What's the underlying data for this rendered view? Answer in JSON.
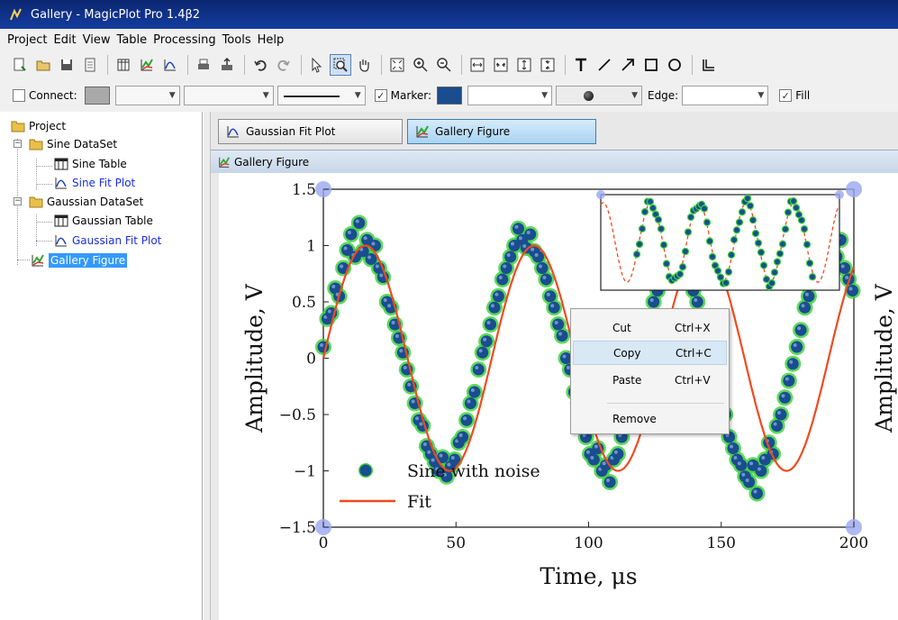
{
  "window": {
    "title": "Gallery - MagicPlot Pro 1.4β2"
  },
  "menu": [
    "Project",
    "Edit",
    "View",
    "Table",
    "Processing",
    "Tools",
    "Help"
  ],
  "format_bar": {
    "connect_label": "Connect:",
    "marker_label": "Marker:",
    "edge_label": "Edge:",
    "fill_label": "Fill",
    "marker_checked": true,
    "fill_checked": true,
    "connect_checked": false,
    "marker_color": "#1a4d8f"
  },
  "tree": {
    "root": "Project",
    "items": [
      {
        "label": "Sine DataSet"
      },
      {
        "label": "Sine Table"
      },
      {
        "label": "Sine Fit Plot"
      },
      {
        "label": "Gaussian DataSet"
      },
      {
        "label": "Gaussian Table"
      },
      {
        "label": "Gaussian Fit Plot"
      },
      {
        "label": "Gallery Figure"
      }
    ]
  },
  "tabs": [
    {
      "label": "Gaussian Fit Plot"
    },
    {
      "label": "Gallery Figure"
    }
  ],
  "document": {
    "title": "Gallery Figure"
  },
  "context_menu": {
    "items": [
      {
        "label": "Cut",
        "shortcut": "Ctrl+X"
      },
      {
        "label": "Copy",
        "shortcut": "Ctrl+C"
      },
      {
        "label": "Paste",
        "shortcut": "Ctrl+V"
      },
      {
        "label": "Remove",
        "shortcut": ""
      }
    ]
  },
  "chart_data": {
    "type": "scatter",
    "title": "",
    "xlabel": "Time, μs",
    "ylabel": "Amplitude, V",
    "right_ylabel": "Amplitude, V",
    "xlim": [
      0,
      200
    ],
    "ylim": [
      -1.5,
      1.5
    ],
    "x_ticks": [
      "0",
      "50",
      "100",
      "150",
      "200"
    ],
    "y_ticks": [
      "1.5",
      "1",
      "0.5",
      "0",
      "−0.5",
      "−1",
      "−1.5"
    ],
    "y_tick_values": [
      1.5,
      1,
      0.5,
      0,
      -0.5,
      -1,
      -1.5
    ],
    "x_tick_values": [
      0,
      50,
      100,
      150,
      200
    ],
    "legend_position": "bottom-left",
    "series": [
      {
        "name": "Sine with noise",
        "kind": "marker",
        "color": "#1a4d8f",
        "glow": "#3fd43f",
        "x": [
          0,
          1.5,
          3,
          4.5,
          6,
          7.5,
          9,
          10.5,
          12,
          13.5,
          15,
          16.5,
          18,
          19.5,
          21,
          22.5,
          24,
          25.5,
          27,
          28.5,
          30,
          31.5,
          33,
          34.5,
          36,
          37.5,
          39,
          40.5,
          42,
          43.5,
          45,
          46.5,
          48,
          49.5,
          51,
          52.5,
          54,
          55.5,
          57,
          58.5,
          60,
          61.5,
          63,
          64.5,
          66,
          67.5,
          69,
          70.5,
          72,
          73.5,
          75,
          76.5,
          78,
          79.5,
          81,
          82.5,
          84,
          85.5,
          87,
          88.5,
          90,
          91.5,
          93,
          94.5,
          96,
          97.5,
          99,
          100.5,
          102,
          103.5,
          105,
          106.5,
          108,
          109.5,
          111,
          112.5,
          114,
          115.5,
          117,
          118.5,
          120,
          121.5,
          123,
          124.5,
          126,
          127.5,
          129,
          130.5,
          132,
          133.5,
          135,
          136.5,
          138,
          139.5,
          141,
          142.5,
          144,
          145.5,
          147,
          148.5,
          150,
          151.5,
          153,
          154.5,
          156,
          157.5,
          159,
          160.5,
          162,
          163.5,
          165,
          166.5,
          168,
          169.5,
          171,
          172.5,
          174,
          175.5,
          177,
          178.5,
          180,
          181.5,
          183,
          184.5,
          186,
          187.5,
          189,
          190.5,
          192,
          193.5,
          195,
          196.5,
          198,
          199.5
        ],
        "y": [
          0.1,
          0.35,
          0.4,
          0.62,
          0.55,
          0.8,
          0.96,
          1.1,
          0.9,
          1.2,
          0.95,
          1.05,
          0.88,
          1.0,
          0.8,
          0.72,
          0.5,
          0.45,
          0.3,
          0.18,
          0.05,
          -0.1,
          -0.25,
          -0.4,
          -0.55,
          -0.6,
          -0.78,
          -0.85,
          -0.92,
          -1.0,
          -0.88,
          -1.05,
          -0.96,
          -0.9,
          -0.75,
          -0.7,
          -0.55,
          -0.4,
          -0.3,
          -0.1,
          0.05,
          0.15,
          0.3,
          0.45,
          0.55,
          0.7,
          0.8,
          0.9,
          1.0,
          1.15,
          1.05,
          0.98,
          1.1,
          0.95,
          0.9,
          0.8,
          0.7,
          0.55,
          0.45,
          0.3,
          0.2,
          0.0,
          -0.1,
          -0.3,
          -0.4,
          -0.5,
          -0.7,
          -0.85,
          -0.9,
          -0.8,
          -1.0,
          -0.95,
          -1.1,
          -0.9,
          -0.85,
          -0.7,
          -0.6,
          -0.4,
          -0.3,
          -0.1,
          0.05,
          0.2,
          0.35,
          0.5,
          0.6,
          0.75,
          0.9,
          0.95,
          1.0,
          1.1,
          0.95,
          0.9,
          0.82,
          0.6,
          0.5,
          0.35,
          0.2,
          0.05,
          -0.1,
          -0.25,
          -0.4,
          -0.5,
          -0.7,
          -0.8,
          -0.9,
          -0.95,
          -1.05,
          -1.1,
          -0.95,
          -1.2,
          -1.0,
          -0.9,
          -0.75,
          -0.85,
          -0.6,
          -0.5,
          -0.35,
          -0.2,
          -0.05,
          0.1,
          0.25,
          0.45,
          0.55,
          0.7,
          0.8,
          0.9,
          0.95,
          1.0,
          0.85,
          0.9,
          1.05,
          0.8,
          0.7,
          0.6
        ]
      },
      {
        "name": "Fit",
        "kind": "line",
        "color": "#f04a1e",
        "model": {
          "amplitude": 1.0,
          "period": 63.5,
          "phase_x": 0.0
        }
      }
    ],
    "inset": {
      "series_names": [
        "Sine with noise",
        "Fit"
      ],
      "ylim": [
        -1.2,
        1.2
      ],
      "periods": 5
    }
  }
}
